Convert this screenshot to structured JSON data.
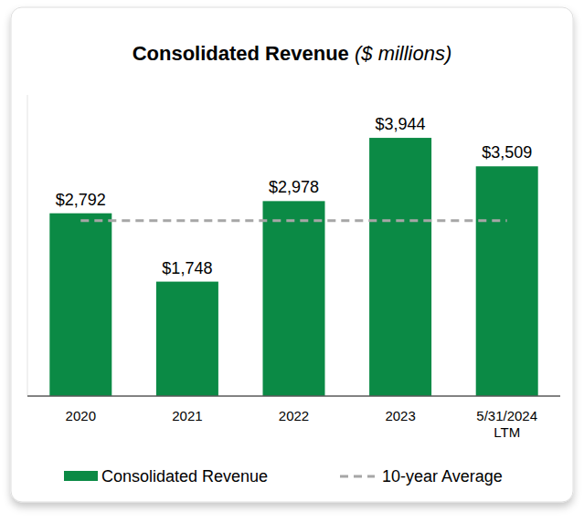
{
  "chart_data": {
    "type": "bar",
    "title": "Consolidated Revenue",
    "subtitle": "($ millions)",
    "categories": [
      "2020",
      "2021",
      "2022",
      "2023",
      "5/31/2024 LTM"
    ],
    "series": [
      {
        "name": "Consolidated Revenue",
        "color": "#0b8a45",
        "values": [
          2792,
          1748,
          2978,
          3944,
          3509
        ],
        "value_labels": [
          "$2,792",
          "$1,748",
          "$2,978",
          "$3,944",
          "$3,509"
        ]
      },
      {
        "name": "10-year Average",
        "type": "line",
        "line_style": "dashed",
        "color": "#a6a6a6",
        "values": [
          2680,
          2680,
          2680,
          2680,
          2680
        ]
      }
    ],
    "ylim": [
      0,
      4600
    ],
    "yticks": [],
    "tick_labels": "x",
    "grid": false,
    "data_labels": true
  }
}
